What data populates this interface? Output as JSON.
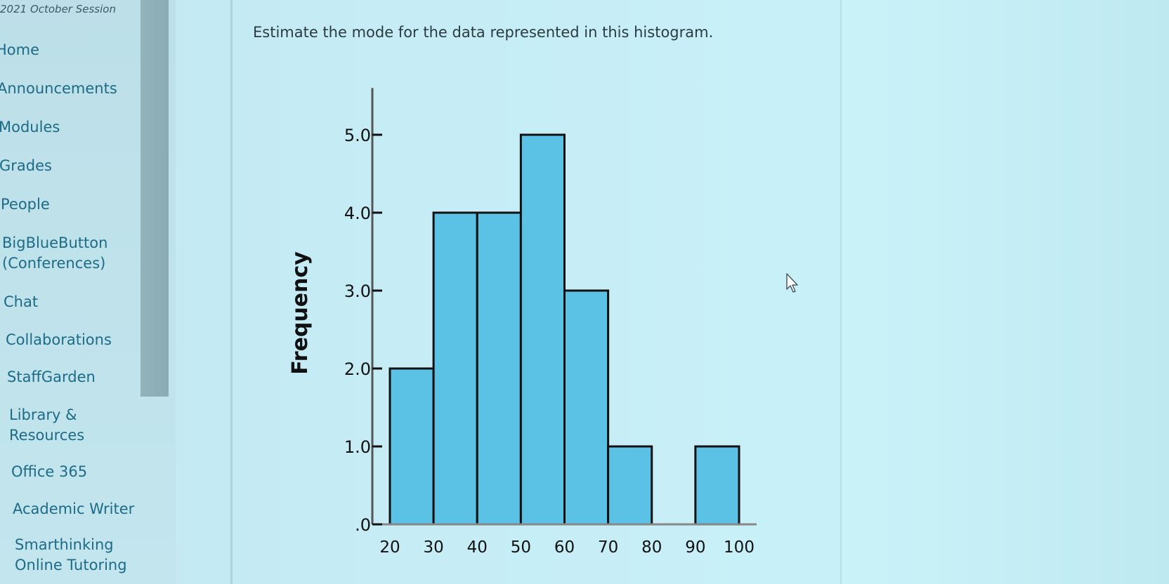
{
  "nav": {
    "course_session": "2021 October Session",
    "items": [
      {
        "label": "Home"
      },
      {
        "label": "Announcements"
      },
      {
        "label": "Modules"
      },
      {
        "label": "Grades"
      },
      {
        "label": "People"
      },
      {
        "label": "BigBlueButton",
        "label2": "(Conferences)"
      },
      {
        "label": "Chat"
      },
      {
        "label": "Collaborations"
      },
      {
        "label": "StaffGarden"
      },
      {
        "label": "Library &",
        "label2": "Resources"
      },
      {
        "label": "Office 365"
      },
      {
        "label": "Academic Writer"
      },
      {
        "label": "Smarthinking",
        "label2": "Online Tutoring"
      }
    ]
  },
  "question": {
    "text": "Estimate the mode for the data represented in this histogram."
  },
  "colors": {
    "bar_fill": "#5bc2e6",
    "bar_stroke": "#111111",
    "link": "#1d6b86"
  },
  "icons": {
    "cursor": "mouse-pointer-icon"
  },
  "chart_data": {
    "type": "bar",
    "subtype": "histogram",
    "ylabel": "Frequency",
    "xlabel": "",
    "bins": [
      {
        "start": 20,
        "end": 30,
        "value": 2
      },
      {
        "start": 30,
        "end": 40,
        "value": 4
      },
      {
        "start": 40,
        "end": 50,
        "value": 4
      },
      {
        "start": 50,
        "end": 60,
        "value": 5
      },
      {
        "start": 60,
        "end": 70,
        "value": 3
      },
      {
        "start": 70,
        "end": 80,
        "value": 1
      },
      {
        "start": 80,
        "end": 90,
        "value": 0
      },
      {
        "start": 90,
        "end": 100,
        "value": 1
      }
    ],
    "x_ticks": [
      "20",
      "30",
      "40",
      "50",
      "60",
      "70",
      "80",
      "90",
      "100"
    ],
    "x_tick_values": [
      20,
      30,
      40,
      50,
      60,
      70,
      80,
      90,
      100
    ],
    "y_ticks": [
      ".0",
      "1.0",
      "2.0",
      "3.0",
      "4.0",
      "5.0"
    ],
    "y_tick_values": [
      0,
      1,
      2,
      3,
      4,
      5
    ],
    "xlim": [
      20,
      100
    ],
    "ylim": [
      0,
      5.5
    ],
    "grid": false
  }
}
